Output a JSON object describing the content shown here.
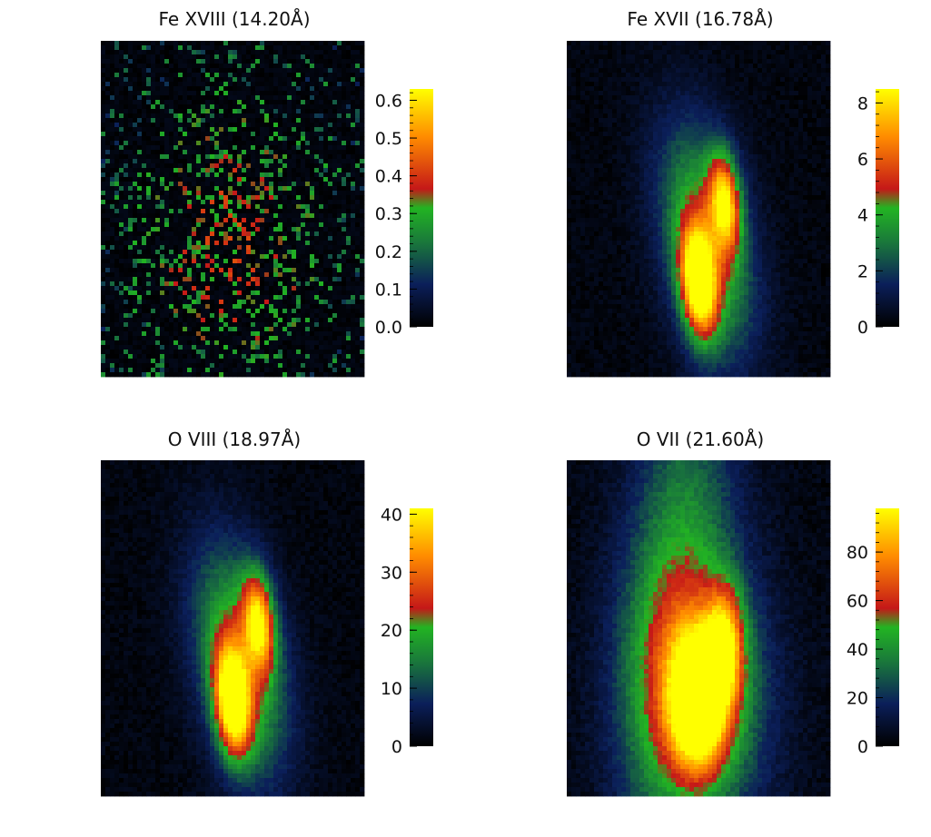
{
  "chart_data": [
    {
      "type": "heatmap",
      "title": "Fe XVIII (14.20Å)",
      "colorbar": {
        "range": [
          0,
          0.63
        ],
        "ticks": [
          0.0,
          0.1,
          0.2,
          0.3,
          0.4,
          0.5,
          0.6
        ],
        "tick_labels": [
          "0.0",
          "0.1",
          "0.2",
          "0.3",
          "0.4",
          "0.5",
          "0.6"
        ]
      },
      "pattern": "sparse-noise",
      "colormap": [
        "#000000",
        "#0b1f5a",
        "#1a7a3a",
        "#22b422",
        "#c51818",
        "#ff8c00",
        "#ffff00"
      ]
    },
    {
      "type": "heatmap",
      "title": "Fe XVII (16.78Å)",
      "colorbar": {
        "range": [
          0,
          8.5
        ],
        "ticks": [
          0,
          2,
          4,
          6,
          8
        ],
        "tick_labels": [
          "0",
          "2",
          "4",
          "6",
          "8"
        ]
      },
      "pattern": "double-blob",
      "colormap": [
        "#000000",
        "#0b1f5a",
        "#1a7a3a",
        "#22b422",
        "#c51818",
        "#ff8c00",
        "#ffff00"
      ]
    },
    {
      "type": "heatmap",
      "title": "O VIII (18.97Å)",
      "colorbar": {
        "range": [
          0,
          41
        ],
        "ticks": [
          0,
          10,
          20,
          30,
          40
        ],
        "tick_labels": [
          "0",
          "10",
          "20",
          "30",
          "40"
        ]
      },
      "pattern": "double-blob",
      "colormap": [
        "#000000",
        "#0b1f5a",
        "#1a7a3a",
        "#22b422",
        "#c51818",
        "#ff8c00",
        "#ffff00"
      ]
    },
    {
      "type": "heatmap",
      "title": "O VII (21.60Å)",
      "colorbar": {
        "range": [
          0,
          98
        ],
        "ticks": [
          0,
          20,
          40,
          60,
          80
        ],
        "tick_labels": [
          "0",
          "20",
          "40",
          "60",
          "80"
        ]
      },
      "pattern": "broad-blob",
      "colormap": [
        "#000000",
        "#0b1f5a",
        "#1a7a3a",
        "#22b422",
        "#c51818",
        "#ff8c00",
        "#ffff00"
      ]
    }
  ]
}
